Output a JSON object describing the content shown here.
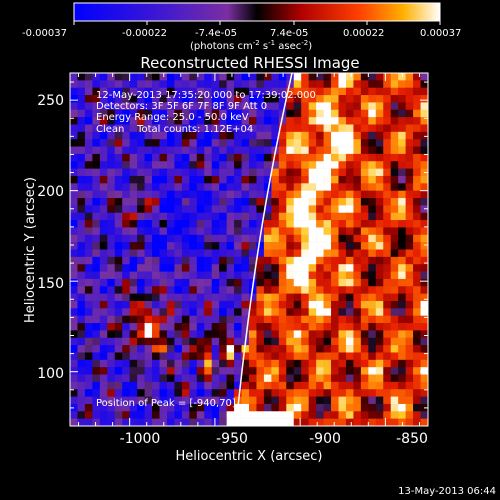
{
  "colorbar": {
    "ticks": [
      "-0.00037",
      "-0.00022",
      "-7.4e-05",
      "7.4e-05",
      "0.00022",
      "0.00037"
    ],
    "unit_parts": [
      "(photons cm",
      "-2",
      " s",
      "-1",
      " asec",
      "-2",
      ")"
    ]
  },
  "chart_data": {
    "type": "heatmap",
    "title": "Reconstructed RHESSI Image",
    "xlabel": "Heliocentric X (arcsec)",
    "ylabel": "Heliocentric Y (arcsec)",
    "x_ticks": [
      "-1000",
      "-950",
      "-900",
      "-850"
    ],
    "y_ticks": [
      "100",
      "150",
      "200",
      "250"
    ],
    "xlim": [
      -1035,
      -825
    ],
    "ylim": [
      70,
      265
    ],
    "color_range": [
      -0.00037,
      0.00037
    ],
    "annotations": [
      "12-May-2013 17:35:20.000 to 17:39:02.000",
      "Detectors: 3F 5F 6F 7F 8F 9F Att 0",
      "Energy Range: 25.0 - 50.0 keV",
      "Clean    Total counts: 1.12E+04",
      "Position of Peak = [-940,70]"
    ],
    "peak_position": [
      -940,
      70
    ]
  },
  "footer": {
    "timestamp": "13-May-2013 06:44"
  },
  "colors": {
    "background": "#000000",
    "foreground": "#ffffff"
  }
}
